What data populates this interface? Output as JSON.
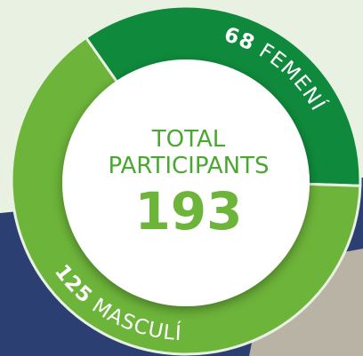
{
  "chart_data": {
    "type": "donut",
    "title": "TOTAL PARTICIPANTS",
    "total": 193,
    "start_angle": -35,
    "series": [
      {
        "name": "FEMENÍ",
        "color": "#0f8a3c",
        "values": [
          68
        ]
      },
      {
        "name": "MASCULÍ",
        "color": "#6db43a",
        "values": [
          125
        ]
      }
    ]
  }
}
